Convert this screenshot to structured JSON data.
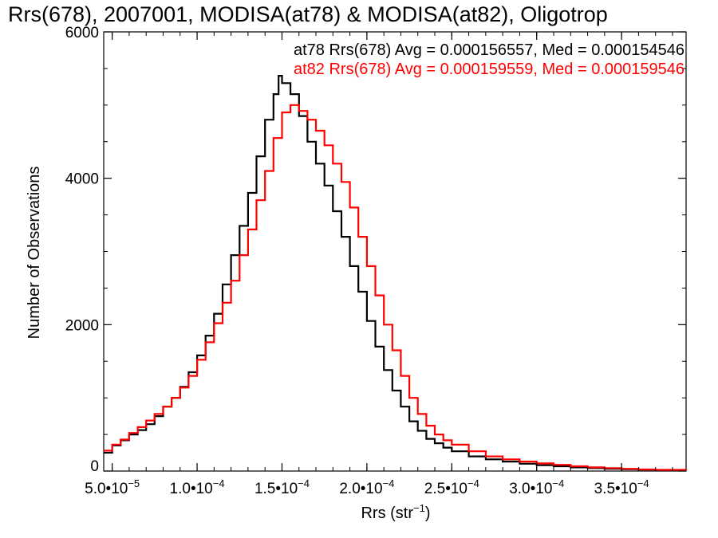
{
  "chart_data": {
    "type": "step-histogram",
    "title": "Rrs(678), 2007001, MODISA(at78) & MODISA(at82), Oligotrop",
    "xlabel_main": "Rrs (str",
    "xlabel_exp": "−1",
    "xlabel_close": ")",
    "ylabel": "Number of Observations",
    "xlim": [
      4.5e-05,
      0.000388
    ],
    "ylim": [
      0,
      6000
    ],
    "x_ticks": [
      {
        "value": 5e-05,
        "mantissa": "5.0•10",
        "exp": "−5"
      },
      {
        "value": 0.0001,
        "mantissa": "1.0•10",
        "exp": "−4"
      },
      {
        "value": 0.00015,
        "mantissa": "1.5•10",
        "exp": "−4"
      },
      {
        "value": 0.0002,
        "mantissa": "2.0•10",
        "exp": "−4"
      },
      {
        "value": 0.00025,
        "mantissa": "2.5•10",
        "exp": "−4"
      },
      {
        "value": 0.0003,
        "mantissa": "3.0•10",
        "exp": "−4"
      },
      {
        "value": 0.00035,
        "mantissa": "3.5•10",
        "exp": "−4"
      }
    ],
    "y_ticks": [
      0,
      2000,
      4000,
      6000
    ],
    "grid": false,
    "legend_position": "top-right",
    "series": [
      {
        "name": "at78",
        "color": "#000000",
        "legend": "at78 Rrs(678) Avg = 0.000156557, Med = 0.000154546",
        "points": [
          [
            4.5e-05,
            250
          ],
          [
            5e-05,
            350
          ],
          [
            5.5e-05,
            420
          ],
          [
            6e-05,
            500
          ],
          [
            6.5e-05,
            560
          ],
          [
            7e-05,
            640
          ],
          [
            7.5e-05,
            750
          ],
          [
            8e-05,
            880
          ],
          [
            8.5e-05,
            1000
          ],
          [
            9e-05,
            1150
          ],
          [
            9.5e-05,
            1350
          ],
          [
            0.0001,
            1580
          ],
          [
            0.000105,
            1850
          ],
          [
            0.00011,
            2150
          ],
          [
            0.000115,
            2550
          ],
          [
            0.00012,
            2950
          ],
          [
            0.000125,
            3350
          ],
          [
            0.00013,
            3800
          ],
          [
            0.000135,
            4300
          ],
          [
            0.00014,
            4800
          ],
          [
            0.000145,
            5150
          ],
          [
            0.000148,
            5400
          ],
          [
            0.00015,
            5300
          ],
          [
            0.000155,
            5150
          ],
          [
            0.00016,
            4850
          ],
          [
            0.000165,
            4500
          ],
          [
            0.00017,
            4200
          ],
          [
            0.000175,
            3900
          ],
          [
            0.00018,
            3550
          ],
          [
            0.000185,
            3200
          ],
          [
            0.00019,
            2800
          ],
          [
            0.000195,
            2450
          ],
          [
            0.0002,
            2050
          ],
          [
            0.000205,
            1700
          ],
          [
            0.00021,
            1380
          ],
          [
            0.000215,
            1100
          ],
          [
            0.00022,
            880
          ],
          [
            0.000225,
            680
          ],
          [
            0.00023,
            550
          ],
          [
            0.000235,
            440
          ],
          [
            0.00024,
            380
          ],
          [
            0.000245,
            320
          ],
          [
            0.00025,
            270
          ],
          [
            0.00026,
            200
          ],
          [
            0.00027,
            160
          ],
          [
            0.00028,
            130
          ],
          [
            0.00029,
            100
          ],
          [
            0.0003,
            80
          ],
          [
            0.00031,
            65
          ],
          [
            0.00032,
            50
          ],
          [
            0.00033,
            40
          ],
          [
            0.00034,
            30
          ],
          [
            0.00035,
            25
          ],
          [
            0.00036,
            20
          ],
          [
            0.00037,
            15
          ],
          [
            0.000388,
            10
          ]
        ]
      },
      {
        "name": "at82",
        "color": "#ff0000",
        "legend": "at82 Rrs(678) Avg = 0.000159559, Med = 0.000159546",
        "points": [
          [
            4.5e-05,
            280
          ],
          [
            5e-05,
            360
          ],
          [
            5.5e-05,
            430
          ],
          [
            6e-05,
            520
          ],
          [
            6.5e-05,
            600
          ],
          [
            7e-05,
            690
          ],
          [
            7.5e-05,
            780
          ],
          [
            8e-05,
            880
          ],
          [
            8.5e-05,
            1000
          ],
          [
            9e-05,
            1140
          ],
          [
            9.5e-05,
            1300
          ],
          [
            0.0001,
            1520
          ],
          [
            0.000105,
            1760
          ],
          [
            0.00011,
            2020
          ],
          [
            0.000115,
            2300
          ],
          [
            0.00012,
            2600
          ],
          [
            0.000125,
            2950
          ],
          [
            0.00013,
            3300
          ],
          [
            0.000135,
            3700
          ],
          [
            0.00014,
            4100
          ],
          [
            0.000145,
            4550
          ],
          [
            0.00015,
            4900
          ],
          [
            0.000155,
            5000
          ],
          [
            0.00016,
            4920
          ],
          [
            0.000165,
            4800
          ],
          [
            0.00017,
            4650
          ],
          [
            0.000175,
            4450
          ],
          [
            0.00018,
            4200
          ],
          [
            0.000185,
            3950
          ],
          [
            0.00019,
            3600
          ],
          [
            0.000195,
            3200
          ],
          [
            0.0002,
            2800
          ],
          [
            0.000205,
            2400
          ],
          [
            0.00021,
            2000
          ],
          [
            0.000215,
            1650
          ],
          [
            0.00022,
            1300
          ],
          [
            0.000225,
            1000
          ],
          [
            0.00023,
            780
          ],
          [
            0.000235,
            620
          ],
          [
            0.00024,
            500
          ],
          [
            0.000245,
            420
          ],
          [
            0.00025,
            360
          ],
          [
            0.00026,
            270
          ],
          [
            0.00027,
            200
          ],
          [
            0.00028,
            160
          ],
          [
            0.00029,
            130
          ],
          [
            0.0003,
            105
          ],
          [
            0.00031,
            85
          ],
          [
            0.00032,
            65
          ],
          [
            0.00033,
            50
          ],
          [
            0.00034,
            40
          ],
          [
            0.00035,
            30
          ],
          [
            0.00036,
            22
          ],
          [
            0.00037,
            16
          ],
          [
            0.000388,
            10
          ]
        ]
      }
    ]
  }
}
